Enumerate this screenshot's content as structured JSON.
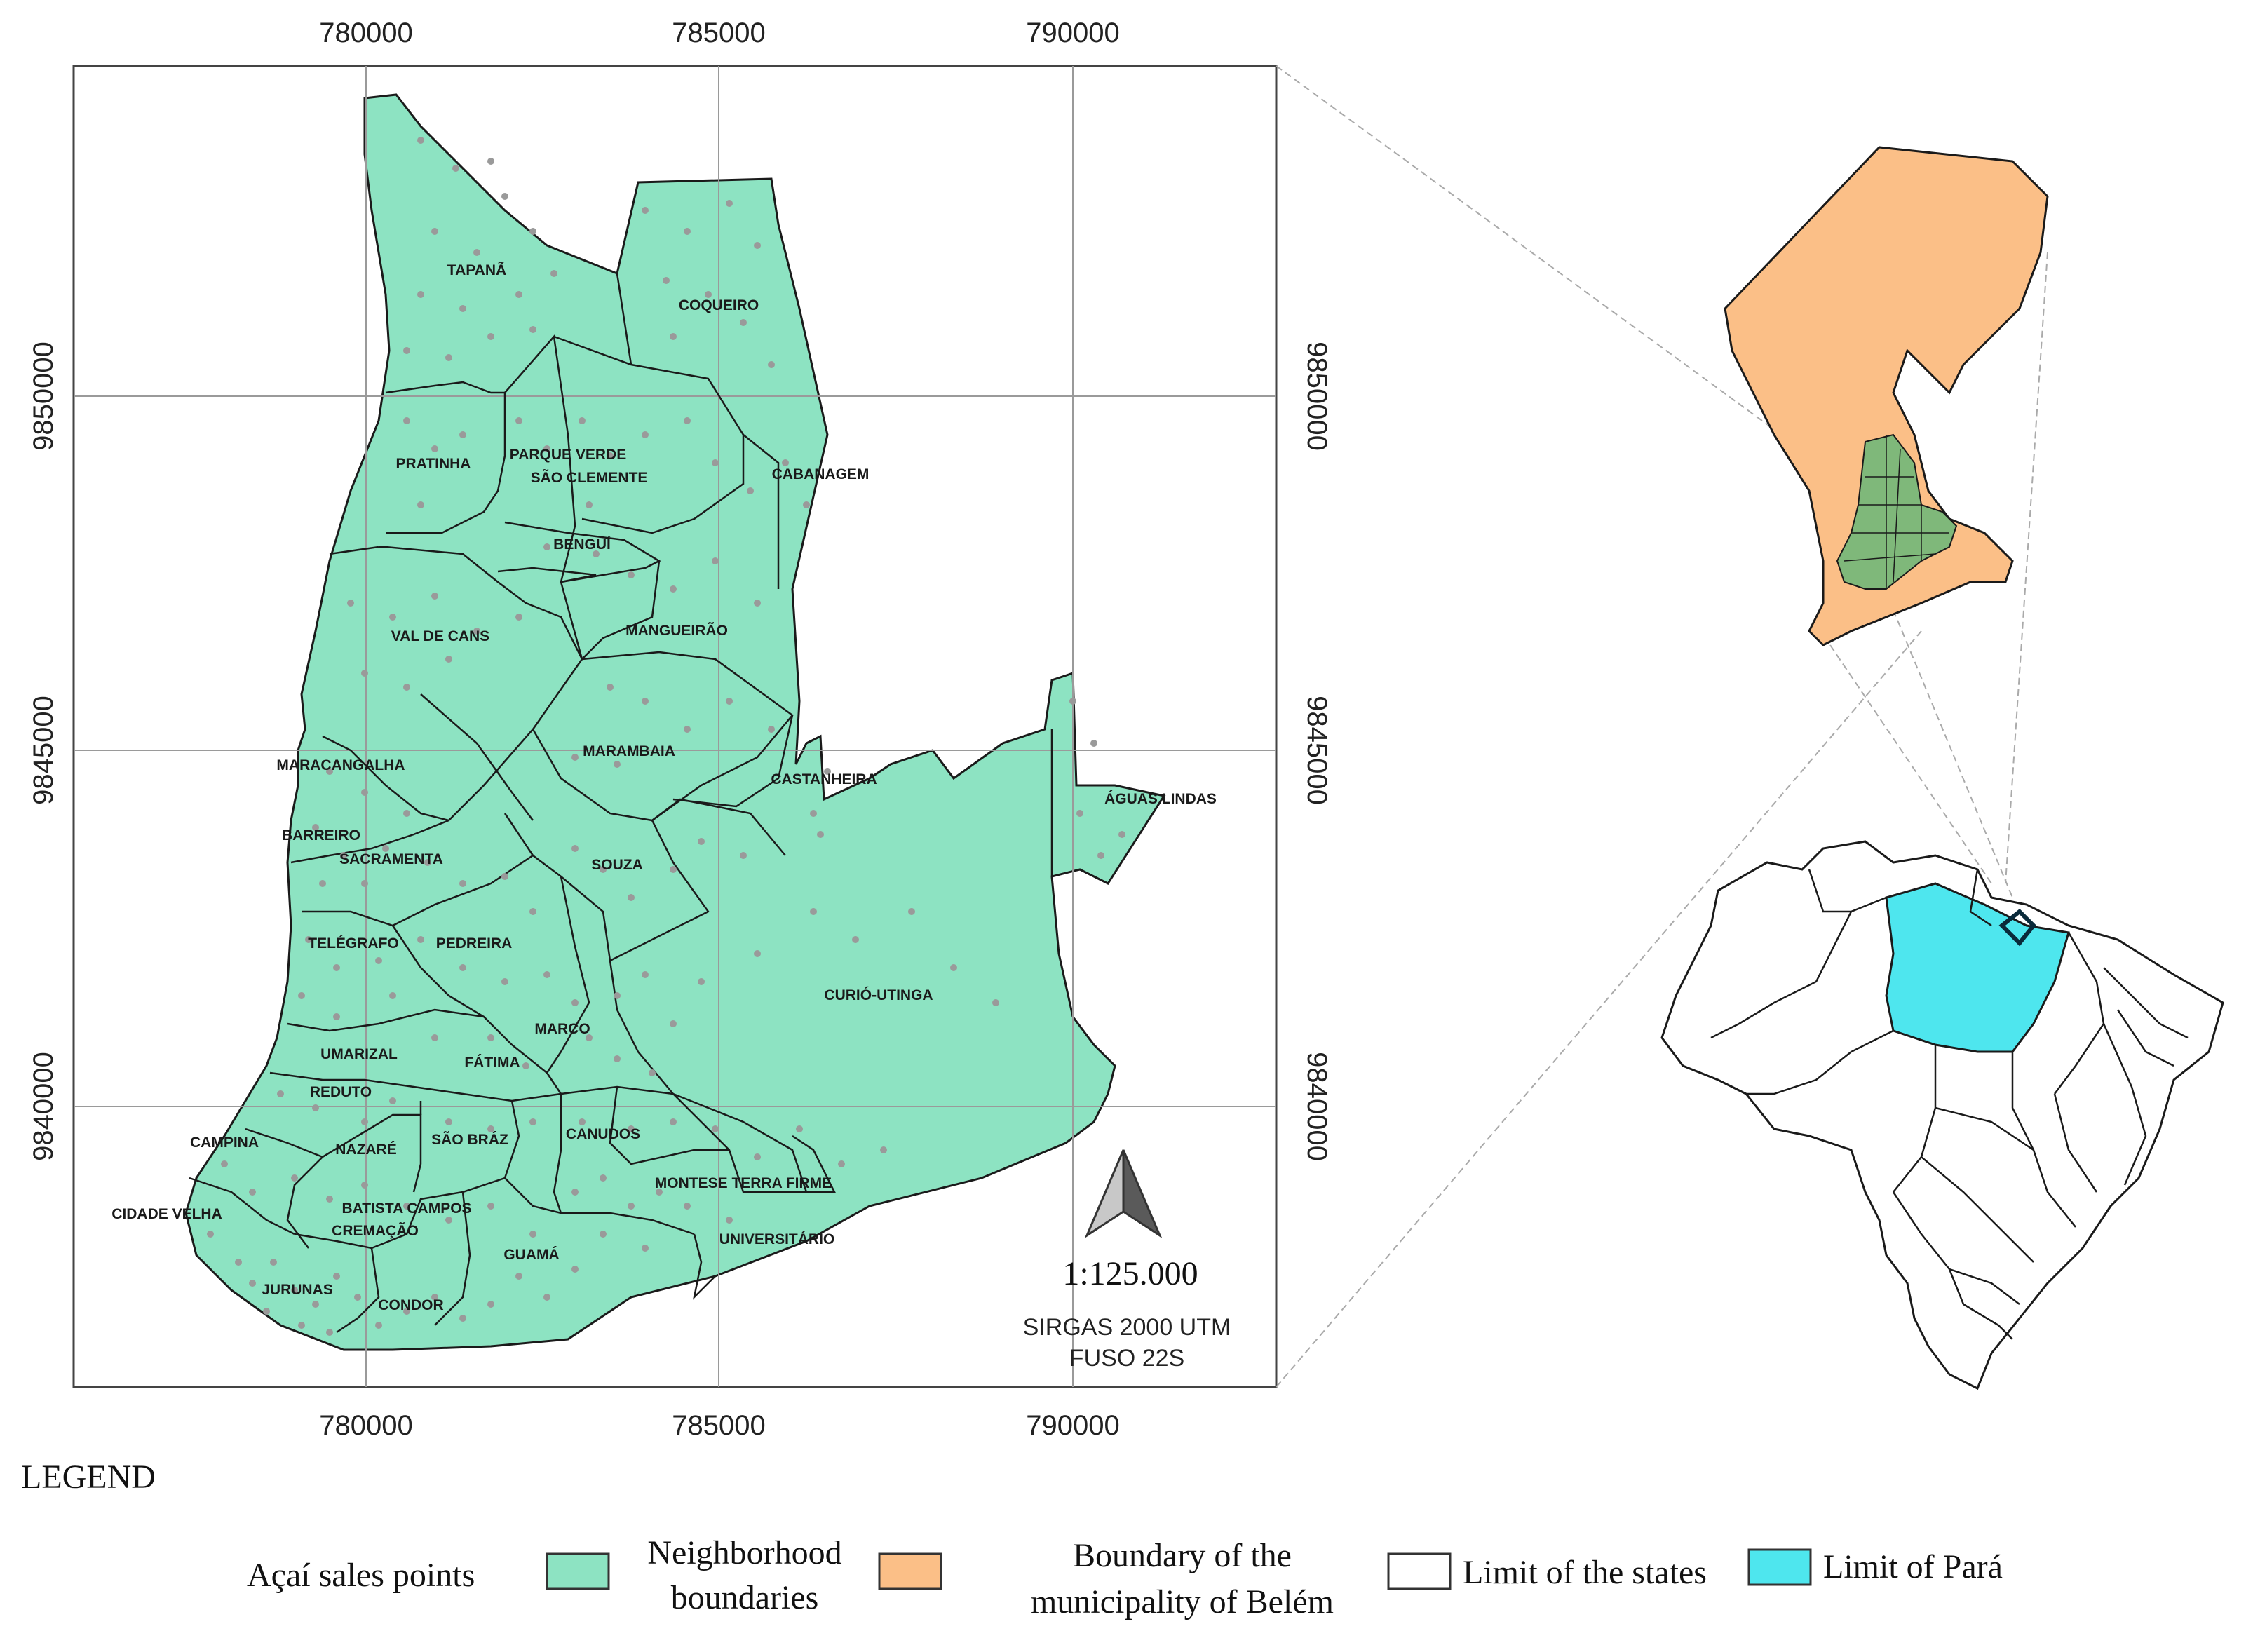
{
  "map": {
    "x_ticks": [
      "780000",
      "785000",
      "790000"
    ],
    "y_ticks": [
      "9850000",
      "9845000",
      "9840000"
    ],
    "neighborhoods": [
      {
        "id": "tapana",
        "label": "TAPANÃ"
      },
      {
        "id": "coqueiro",
        "label": "COQUEIRO"
      },
      {
        "id": "pratinha",
        "label": "PRATINHA"
      },
      {
        "id": "parque-verde",
        "label": "PARQUE VERDE"
      },
      {
        "id": "sao-clemente",
        "label": "SÃO CLEMENTE"
      },
      {
        "id": "cabanagem",
        "label": "CABANAGEM"
      },
      {
        "id": "bengui",
        "label": "BENGUÍ"
      },
      {
        "id": "val-de-cans",
        "label": "VAL DE CANS"
      },
      {
        "id": "mangueirao",
        "label": "MANGUEIRÃO"
      },
      {
        "id": "maracangalha",
        "label": "MARACANGALHA"
      },
      {
        "id": "marambaia",
        "label": "MARAMBAIA"
      },
      {
        "id": "castanheira",
        "label": "CASTANHEIRA"
      },
      {
        "id": "aguas-lindas",
        "label": "ÁGUAS LINDAS"
      },
      {
        "id": "barreiro",
        "label": "BARREIRO"
      },
      {
        "id": "sacramenta",
        "label": "SACRAMENTA"
      },
      {
        "id": "souza",
        "label": "SOUZA"
      },
      {
        "id": "telegrafo",
        "label": "TELÉGRAFO"
      },
      {
        "id": "pedreira",
        "label": "PEDREIRA"
      },
      {
        "id": "curio-utinga",
        "label": "CURIÓ-UTINGA"
      },
      {
        "id": "marco",
        "label": "MARCO"
      },
      {
        "id": "umarizal",
        "label": "UMARIZAL"
      },
      {
        "id": "fatima",
        "label": "FÁTIMA"
      },
      {
        "id": "reduto",
        "label": "REDUTO"
      },
      {
        "id": "campina",
        "label": "CAMPINA"
      },
      {
        "id": "nazare",
        "label": "NAZARÉ"
      },
      {
        "id": "sao-braz",
        "label": "SÃO BRÁZ"
      },
      {
        "id": "canudos",
        "label": "CANUDOS"
      },
      {
        "id": "montese",
        "label": "MONTESE TERRA FIRME"
      },
      {
        "id": "cidade-velha",
        "label": "CIDADE VELHA"
      },
      {
        "id": "batista-campos",
        "label": "BATISTA CAMPOS"
      },
      {
        "id": "cremacao",
        "label": "CREMAÇÃO"
      },
      {
        "id": "universitario",
        "label": "UNIVERSITÁRIO"
      },
      {
        "id": "guama",
        "label": "GUAMÁ"
      },
      {
        "id": "jurunas",
        "label": "JURUNAS"
      },
      {
        "id": "condor",
        "label": "CONDOR"
      }
    ],
    "scale": "1:125.000",
    "crs_line1": "SIRGAS 2000 UTM",
    "crs_line2": "FUSO 22S"
  },
  "legend": {
    "title": "LEGEND",
    "sales_points": "Açaí sales points",
    "neighborhood_line1": "Neighborhood",
    "neighborhood_line2": "boundaries",
    "municipality_line1": "Boundary of the",
    "municipality_line2": "municipality of Belém",
    "states": "Limit of the states",
    "para": "Limit of Pará"
  },
  "colors": {
    "neighborhood_fill": "#8de3c2",
    "municipality_fill": "#fbbf87",
    "para_fill": "#4ee6ee",
    "points": "#9a9a9a",
    "outline": "#1a1a1a"
  }
}
